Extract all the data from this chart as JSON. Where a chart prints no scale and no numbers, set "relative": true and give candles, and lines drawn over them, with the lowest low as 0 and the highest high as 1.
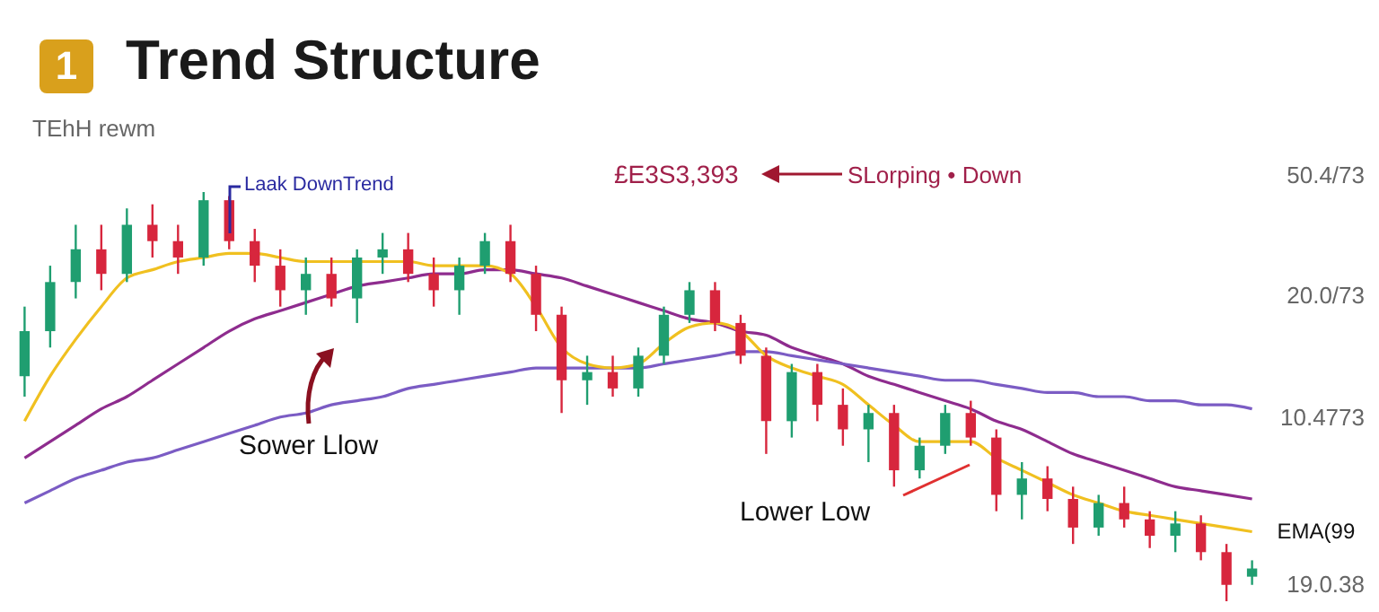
{
  "chart_data": {
    "type": "candlestick",
    "title": "Trend Structure",
    "subtitle": "TEhH rewm",
    "relative": true,
    "annotations": [
      "1",
      "Laak DownTrend",
      "£E3S3,393",
      "SLorping • Down",
      "Sower Llow",
      "Lower Low",
      "50.4/73",
      "20.0/73",
      "10.4773",
      "19.0.38"
    ],
    "categories": [
      null,
      null,
      null,
      null,
      null,
      null,
      null,
      null,
      null,
      null,
      null,
      null,
      null,
      null,
      null,
      null,
      null,
      null,
      null,
      null,
      null,
      null,
      null,
      null,
      null,
      null,
      null,
      null,
      null,
      null,
      null,
      null,
      null,
      null,
      null,
      null,
      null,
      null,
      null,
      null,
      null,
      null,
      null,
      null,
      null,
      null,
      null,
      null,
      null
    ],
    "ohlc": [
      [
        0.55,
        0.72,
        0.5,
        0.66
      ],
      [
        0.66,
        0.82,
        0.62,
        0.78
      ],
      [
        0.78,
        0.92,
        0.74,
        0.86
      ],
      [
        0.86,
        0.92,
        0.76,
        0.8
      ],
      [
        0.8,
        0.96,
        0.78,
        0.92
      ],
      [
        0.92,
        0.97,
        0.84,
        0.88
      ],
      [
        0.88,
        0.92,
        0.8,
        0.84
      ],
      [
        0.84,
        1.0,
        0.82,
        0.98
      ],
      [
        0.98,
        0.99,
        0.86,
        0.88
      ],
      [
        0.88,
        0.91,
        0.78,
        0.82
      ],
      [
        0.82,
        0.86,
        0.72,
        0.76
      ],
      [
        0.76,
        0.84,
        0.7,
        0.8
      ],
      [
        0.8,
        0.84,
        0.72,
        0.74
      ],
      [
        0.74,
        0.86,
        0.68,
        0.84
      ],
      [
        0.84,
        0.9,
        0.8,
        0.86
      ],
      [
        0.86,
        0.9,
        0.78,
        0.8
      ],
      [
        0.8,
        0.84,
        0.72,
        0.76
      ],
      [
        0.76,
        0.84,
        0.7,
        0.82
      ],
      [
        0.82,
        0.9,
        0.8,
        0.88
      ],
      [
        0.88,
        0.92,
        0.78,
        0.8
      ],
      [
        0.8,
        0.82,
        0.66,
        0.7
      ],
      [
        0.7,
        0.72,
        0.46,
        0.54
      ],
      [
        0.54,
        0.6,
        0.48,
        0.56
      ],
      [
        0.56,
        0.6,
        0.5,
        0.52
      ],
      [
        0.52,
        0.62,
        0.5,
        0.6
      ],
      [
        0.6,
        0.72,
        0.58,
        0.7
      ],
      [
        0.7,
        0.78,
        0.68,
        0.76
      ],
      [
        0.76,
        0.78,
        0.66,
        0.68
      ],
      [
        0.68,
        0.7,
        0.58,
        0.6
      ],
      [
        0.6,
        0.62,
        0.36,
        0.44
      ],
      [
        0.44,
        0.58,
        0.4,
        0.56
      ],
      [
        0.56,
        0.58,
        0.44,
        0.48
      ],
      [
        0.48,
        0.52,
        0.38,
        0.42
      ],
      [
        0.42,
        0.48,
        0.34,
        0.46
      ],
      [
        0.46,
        0.48,
        0.28,
        0.32
      ],
      [
        0.32,
        0.4,
        0.3,
        0.38
      ],
      [
        0.38,
        0.48,
        0.36,
        0.46
      ],
      [
        0.46,
        0.49,
        0.38,
        0.4
      ],
      [
        0.4,
        0.42,
        0.22,
        0.26
      ],
      [
        0.26,
        0.34,
        0.2,
        0.3
      ],
      [
        0.3,
        0.33,
        0.22,
        0.25
      ],
      [
        0.25,
        0.28,
        0.14,
        0.18
      ],
      [
        0.18,
        0.26,
        0.16,
        0.24
      ],
      [
        0.24,
        0.28,
        0.18,
        0.2
      ],
      [
        0.2,
        0.22,
        0.13,
        0.16
      ],
      [
        0.16,
        0.22,
        0.12,
        0.19
      ],
      [
        0.19,
        0.21,
        0.1,
        0.12
      ],
      [
        0.12,
        0.14,
        0.0,
        0.04
      ],
      [
        0.06,
        0.1,
        0.04,
        0.08
      ]
    ],
    "series": [
      {
        "type": "line",
        "color": "#8e2c8e",
        "values": [
          0.35,
          0.39,
          0.43,
          0.47,
          0.5,
          0.54,
          0.58,
          0.62,
          0.66,
          0.69,
          0.71,
          0.73,
          0.75,
          0.77,
          0.78,
          0.79,
          0.8,
          0.8,
          0.81,
          0.81,
          0.8,
          0.79,
          0.77,
          0.75,
          0.73,
          0.71,
          0.69,
          0.68,
          0.66,
          0.65,
          0.62,
          0.6,
          0.58,
          0.55,
          0.53,
          0.51,
          0.49,
          0.47,
          0.44,
          0.42,
          0.39,
          0.36,
          0.34,
          0.32,
          0.3,
          0.28,
          0.27,
          0.26,
          0.25
        ]
      },
      {
        "type": "line",
        "color": "#7b5cc4",
        "values": [
          0.24,
          0.27,
          0.3,
          0.32,
          0.34,
          0.35,
          0.37,
          0.39,
          0.41,
          0.43,
          0.45,
          0.46,
          0.48,
          0.49,
          0.5,
          0.52,
          0.53,
          0.54,
          0.55,
          0.56,
          0.57,
          0.57,
          0.57,
          0.57,
          0.57,
          0.58,
          0.59,
          0.6,
          0.61,
          0.61,
          0.6,
          0.59,
          0.58,
          0.57,
          0.56,
          0.55,
          0.54,
          0.54,
          0.53,
          0.52,
          0.51,
          0.51,
          0.5,
          0.5,
          0.49,
          0.49,
          0.48,
          0.48,
          0.47
        ]
      },
      {
        "type": "line",
        "name": "EMA(99",
        "color": "#f0c020",
        "values": [
          0.44,
          0.55,
          0.64,
          0.72,
          0.79,
          0.81,
          0.83,
          0.84,
          0.85,
          0.85,
          0.84,
          0.83,
          0.83,
          0.83,
          0.83,
          0.83,
          0.82,
          0.82,
          0.82,
          0.8,
          0.72,
          0.62,
          0.58,
          0.57,
          0.58,
          0.63,
          0.67,
          0.68,
          0.66,
          0.6,
          0.57,
          0.55,
          0.53,
          0.48,
          0.43,
          0.39,
          0.39,
          0.39,
          0.35,
          0.32,
          0.29,
          0.26,
          0.24,
          0.22,
          0.21,
          0.2,
          0.19,
          0.18,
          0.17
        ]
      }
    ]
  }
}
